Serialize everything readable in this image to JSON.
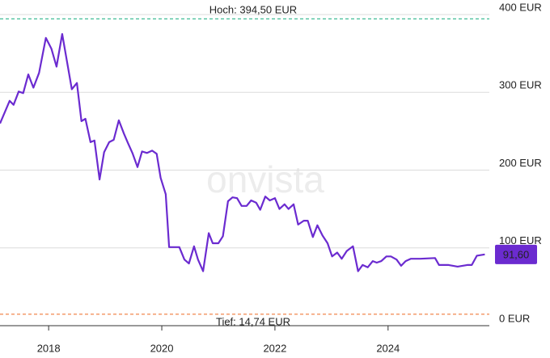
{
  "chart_data": {
    "type": "line",
    "watermark": "onvista",
    "color": "#6b2bd0",
    "grid": true,
    "x": [
      2017.14,
      2017.31,
      2017.38,
      2017.47,
      2017.55,
      2017.64,
      2017.73,
      2017.83,
      2017.95,
      2018.05,
      2018.14,
      2018.24,
      2018.41,
      2018.5,
      2018.58,
      2018.65,
      2018.74,
      2018.81,
      2018.9,
      2018.98,
      2019.07,
      2019.15,
      2019.24,
      2019.33,
      2019.4,
      2019.48,
      2019.57,
      2019.65,
      2019.74,
      2019.83,
      2019.91,
      2019.98,
      2020.07,
      2020.13,
      2020.21,
      2020.31,
      2020.4,
      2020.48,
      2020.57,
      2020.64,
      2020.73,
      2020.83,
      2020.9,
      2021.0,
      2021.08,
      2021.17,
      2021.25,
      2021.33,
      2021.41,
      2021.5,
      2021.58,
      2021.67,
      2021.74,
      2021.83,
      2021.91,
      2022.0,
      2022.08,
      2022.17,
      2022.24,
      2022.33,
      2022.41,
      2022.51,
      2022.58,
      2022.67,
      2022.75,
      2022.84,
      2022.93,
      2023.01,
      2023.1,
      2023.18,
      2023.27,
      2023.38,
      2023.47,
      2023.55,
      2023.64,
      2023.73,
      2023.8,
      2023.88,
      2023.97,
      2024.05,
      2024.15,
      2024.23,
      2024.31,
      2024.4,
      2024.57,
      2024.83,
      2024.9,
      2025.07,
      2025.23,
      2025.4,
      2025.48,
      2025.57,
      2025.71
    ],
    "values": [
      260,
      289,
      284,
      301,
      299,
      323,
      306,
      325,
      370,
      356,
      333,
      375,
      304,
      312,
      263,
      266,
      236,
      238,
      188,
      223,
      236,
      239,
      264,
      247,
      235,
      222,
      204,
      224,
      222,
      225,
      221,
      190,
      169,
      101,
      101,
      101,
      85,
      80,
      102,
      85,
      70,
      119,
      106,
      106,
      115,
      160,
      165,
      164,
      154,
      154,
      161,
      158,
      149,
      166,
      161,
      164,
      150,
      156,
      150,
      156,
      130,
      135,
      135,
      114,
      129,
      116,
      106,
      89,
      94,
      86,
      96,
      102,
      70,
      78,
      75,
      83,
      81,
      83,
      89,
      89,
      85,
      77,
      83,
      86,
      86,
      87,
      78,
      78,
      76,
      78,
      78,
      90,
      91.6
    ],
    "xlim": [
      2017.14,
      2025.79
    ],
    "xticks": [
      2018,
      2020,
      2022,
      2024
    ],
    "ylim": [
      0,
      400
    ],
    "yticks": [
      {
        "value": 0,
        "label": "0 EUR"
      },
      {
        "value": 100,
        "label": "100 EUR"
      },
      {
        "value": 200,
        "label": "200 EUR"
      },
      {
        "value": 300,
        "label": "300 EUR"
      },
      {
        "value": 400,
        "label": "400 EUR"
      }
    ],
    "reference_lines": [
      {
        "value": 394.5,
        "label": "Hoch: 394,50 EUR",
        "color": "#2bb58a",
        "position": "above"
      },
      {
        "value": 14.74,
        "label": "Tief: 14,74 EUR",
        "color": "#f07a3a",
        "position": "below"
      }
    ],
    "last_value": {
      "value": 91.6,
      "label": "91,60"
    }
  }
}
